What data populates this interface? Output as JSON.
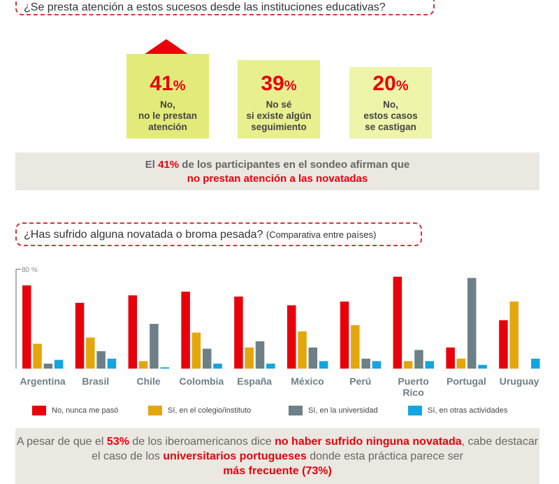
{
  "question1": "¿Se presta atención a estos sucesos desde las instituciones educativas?",
  "cards": [
    {
      "pct": "41",
      "unit": "%",
      "l1": "No,",
      "l2": "no le prestan",
      "l3": "atención"
    },
    {
      "pct": "39",
      "unit": "%",
      "l1": "No sé",
      "l2": "si existe algún",
      "l3": "seguimiento"
    },
    {
      "pct": "20",
      "unit": "%",
      "l1": "No,",
      "l2": "estos casos",
      "l3": "se castigan"
    }
  ],
  "summary1": {
    "a": "El ",
    "b": "41%",
    "c": " de los participantes en el sondeo afirman que",
    "d": "no prestan atención a las novatadas"
  },
  "question2": {
    "main": "¿Has sufrido alguna novatada o broma pesada? ",
    "sub": "(Comparativa entre países)"
  },
  "chart_data": {
    "type": "bar",
    "title": "¿Has sufrido alguna novatada o broma pesada?",
    "ytick_label": "80 %",
    "ylim": [
      0,
      80
    ],
    "categories": [
      "Argentina",
      "Brasil",
      "Chile",
      "Colombia",
      "España",
      "México",
      "Perú",
      "Puerto Rico",
      "Portugal",
      "Uruguay"
    ],
    "series": [
      {
        "name": "No, nunca me pasó",
        "color": "#e8000b",
        "values": [
          67,
          53,
          59,
          62,
          58,
          51,
          54,
          74,
          17,
          39
        ]
      },
      {
        "name": "Sí, en el colegio/instituto",
        "color": "#e3a70d",
        "values": [
          20,
          25,
          6,
          29,
          17,
          30,
          35,
          6,
          8,
          54
        ]
      },
      {
        "name": "Sí, en la universidad",
        "color": "#6d8088",
        "values": [
          4,
          14,
          36,
          16,
          22,
          17,
          8,
          15,
          73,
          0
        ]
      },
      {
        "name": "Sí, en otras actividades",
        "color": "#12a5e0",
        "values": [
          7,
          8,
          1,
          4,
          4,
          6,
          6,
          6,
          3,
          8
        ]
      }
    ],
    "legend": "bottom"
  },
  "summary2": {
    "a": "A pesar de que el ",
    "b": "53%",
    "c": " de los iberoamericanos dice ",
    "d": "no haber sufrido ninguna novatada",
    "e": ", cabe destacar el caso de los ",
    "f": "universitarios portugueses",
    "g": " donde esta práctica parece ser",
    "h": "más frecuente (73%)"
  }
}
